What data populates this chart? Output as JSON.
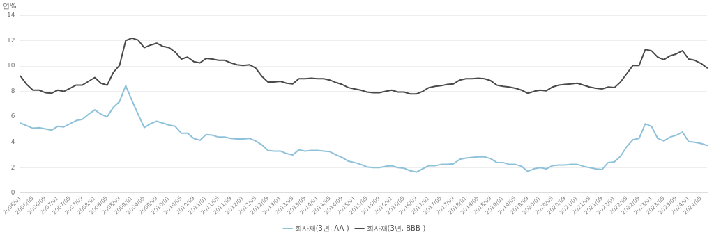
{
  "chart_data": {
    "type": "line",
    "ylabel": "연%",
    "categories": [
      "2006/01",
      null,
      "2006/05",
      null,
      "2006/09",
      null,
      "2007/01",
      null,
      "2007/05",
      null,
      "2007/09",
      null,
      "2008/01",
      null,
      "2008/05",
      null,
      "2008/09",
      null,
      "2009/01",
      null,
      "2009/05",
      null,
      "2009/09",
      null,
      "2010/01",
      null,
      "2010/05",
      null,
      "2010/09",
      null,
      "2011/01",
      null,
      "2011/05",
      null,
      "2011/09",
      null,
      "2012/01",
      null,
      "2012/05",
      null,
      "2012/09",
      null,
      "2013/01",
      null,
      "2013/05",
      null,
      "2013/09",
      null,
      "2014/01",
      null,
      "2014/05",
      null,
      "2014/09",
      null,
      "2015/01",
      null,
      "2015/05",
      null,
      "2015/09",
      null,
      "2016/01",
      null,
      "2016/05",
      null,
      "2016/09",
      null,
      "2017/01",
      null,
      "2017/05",
      null,
      "2017/09",
      null,
      "2018/01",
      null,
      "2018/05",
      null,
      "2018/09",
      null,
      "2019/01",
      null,
      "2019/05",
      null,
      "2019/09",
      null,
      "2020/01",
      null,
      "2020/05",
      null,
      "2020/09",
      null,
      "2021/01",
      null,
      "2021/05",
      null,
      "2021/09",
      null,
      "2022/01",
      null,
      "2022/05",
      null,
      "2022/09",
      null,
      "2023/01",
      null,
      "2023/05",
      null,
      "2023/09",
      null,
      "2024/01",
      null,
      "2024/05",
      null
    ],
    "series": [
      {
        "name": "회사채(3년, AA-)",
        "color": "#8ec1da",
        "values": [
          5.5,
          5.3,
          5.1,
          5.15,
          5.05,
          4.95,
          5.25,
          5.2,
          5.45,
          5.7,
          5.8,
          6.2,
          6.55,
          6.2,
          6.0,
          6.75,
          7.2,
          8.45,
          7.3,
          6.2,
          5.15,
          5.45,
          5.65,
          5.5,
          5.35,
          5.25,
          4.7,
          4.7,
          4.3,
          4.15,
          4.6,
          4.55,
          4.4,
          4.4,
          4.3,
          4.25,
          4.25,
          4.3,
          4.1,
          3.8,
          3.35,
          3.3,
          3.3,
          3.1,
          3.0,
          3.4,
          3.3,
          3.35,
          3.35,
          3.3,
          3.25,
          3.0,
          2.8,
          2.5,
          2.4,
          2.25,
          2.05,
          2.0,
          2.0,
          2.1,
          2.15,
          2.0,
          1.95,
          1.75,
          1.65,
          1.9,
          2.15,
          2.15,
          2.25,
          2.25,
          2.3,
          2.65,
          2.75,
          2.8,
          2.85,
          2.85,
          2.7,
          2.4,
          2.4,
          2.25,
          2.25,
          2.1,
          1.7,
          1.9,
          2.0,
          1.9,
          2.15,
          2.2,
          2.2,
          2.25,
          2.25,
          2.1,
          2.0,
          1.9,
          1.85,
          2.4,
          2.45,
          2.9,
          3.65,
          4.2,
          4.3,
          5.45,
          5.25,
          4.3,
          4.1,
          4.4,
          4.55,
          4.8,
          4.05,
          4.0,
          3.9,
          3.75
        ]
      },
      {
        "name": "회사채(3년, BBB-)",
        "color": "#4a4a4a",
        "values": [
          9.2,
          8.55,
          8.1,
          8.1,
          7.9,
          7.85,
          8.1,
          8.0,
          8.25,
          8.5,
          8.5,
          8.8,
          9.1,
          8.65,
          8.5,
          9.5,
          10.05,
          12.0,
          12.2,
          12.05,
          11.45,
          11.65,
          11.8,
          11.55,
          11.45,
          11.1,
          10.55,
          10.7,
          10.35,
          10.25,
          10.6,
          10.55,
          10.45,
          10.45,
          10.25,
          10.1,
          10.05,
          10.1,
          9.85,
          9.2,
          8.75,
          8.75,
          8.8,
          8.65,
          8.6,
          9.0,
          9.0,
          9.05,
          9.0,
          9.0,
          8.9,
          8.7,
          8.55,
          8.3,
          8.2,
          8.1,
          7.95,
          7.9,
          7.9,
          8.0,
          8.1,
          7.95,
          7.95,
          7.8,
          7.8,
          8.0,
          8.3,
          8.4,
          8.45,
          8.55,
          8.6,
          8.9,
          9.0,
          9.0,
          9.05,
          9.0,
          8.85,
          8.5,
          8.4,
          8.35,
          8.25,
          8.1,
          7.85,
          8.0,
          8.1,
          8.05,
          8.35,
          8.5,
          8.55,
          8.6,
          8.65,
          8.5,
          8.35,
          8.25,
          8.2,
          8.35,
          8.3,
          8.75,
          9.4,
          10.05,
          10.05,
          11.3,
          11.2,
          10.7,
          10.5,
          10.8,
          10.95,
          11.2,
          10.55,
          10.45,
          10.2,
          9.85
        ]
      }
    ],
    "ylim": [
      0,
      14
    ],
    "yticks": [
      0,
      2,
      4,
      6,
      8,
      10,
      12,
      14
    ],
    "grid": "y",
    "legend": "bottom",
    "marker": "none",
    "line_style": "solid"
  }
}
